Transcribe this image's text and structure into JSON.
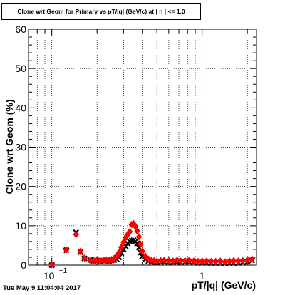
{
  "chart_data": {
    "type": "scatter",
    "title": "Clone wrt Geom for Primary vs pT/|q| (GeV/c) at | η | <= 1.0",
    "xlabel": "pT/|q| (GeV/c)",
    "ylabel": "Clone wrt Geom (%)",
    "x_scale": "log",
    "xlim": [
      0.07,
      2.3
    ],
    "ylim": [
      0,
      60
    ],
    "yticks": [
      0,
      10,
      20,
      30,
      40,
      50,
      60
    ],
    "xtick_labels": [
      {
        "value": 0.1,
        "base": "10",
        "exp": "−1"
      },
      {
        "value": 1,
        "label": "1"
      }
    ],
    "grid": true,
    "series": [
      {
        "color": "#000000",
        "marker": "cross",
        "points": [
          [
            0.1,
            0.0
          ],
          [
            0.125,
            3.8
          ],
          [
            0.145,
            8.3
          ],
          [
            0.155,
            3.3
          ],
          [
            0.165,
            1.7
          ],
          [
            0.18,
            1.3
          ],
          [
            0.19,
            1.1
          ],
          [
            0.2,
            1.2
          ],
          [
            0.21,
            1.0
          ],
          [
            0.22,
            1.1
          ],
          [
            0.23,
            1.2
          ],
          [
            0.24,
            1.0
          ],
          [
            0.25,
            1.2
          ],
          [
            0.26,
            1.3
          ],
          [
            0.27,
            1.5
          ],
          [
            0.28,
            2.0
          ],
          [
            0.29,
            3.0
          ],
          [
            0.3,
            4.0
          ],
          [
            0.31,
            4.8
          ],
          [
            0.32,
            5.5
          ],
          [
            0.33,
            6.0
          ],
          [
            0.34,
            6.2
          ],
          [
            0.35,
            6.3
          ],
          [
            0.36,
            6.0
          ],
          [
            0.37,
            5.5
          ],
          [
            0.38,
            4.5
          ],
          [
            0.39,
            3.2
          ],
          [
            0.4,
            2.2
          ],
          [
            0.42,
            1.5
          ],
          [
            0.44,
            1.0
          ],
          [
            0.46,
            0.8
          ],
          [
            0.48,
            0.8
          ],
          [
            0.5,
            0.7
          ],
          [
            0.53,
            0.7
          ],
          [
            0.56,
            0.8
          ],
          [
            0.6,
            0.7
          ],
          [
            0.64,
            0.7
          ],
          [
            0.68,
            0.8
          ],
          [
            0.72,
            0.7
          ],
          [
            0.77,
            0.7
          ],
          [
            0.82,
            0.8
          ],
          [
            0.88,
            0.7
          ],
          [
            0.94,
            0.6
          ],
          [
            1.0,
            0.6
          ],
          [
            1.07,
            0.6
          ],
          [
            1.15,
            0.5
          ],
          [
            1.23,
            0.5
          ],
          [
            1.32,
            0.6
          ],
          [
            1.42,
            0.4
          ],
          [
            1.52,
            0.5
          ],
          [
            1.62,
            0.5
          ],
          [
            1.74,
            0.6
          ],
          [
            1.86,
            0.7
          ],
          [
            2.0,
            0.8
          ],
          [
            2.15,
            1.2
          ]
        ]
      },
      {
        "color": "#ff0000",
        "marker": "diamond",
        "points": [
          [
            0.1,
            0.1
          ],
          [
            0.125,
            3.9
          ],
          [
            0.145,
            7.8
          ],
          [
            0.155,
            3.5
          ],
          [
            0.165,
            1.8
          ],
          [
            0.18,
            1.2
          ],
          [
            0.19,
            1.1
          ],
          [
            0.2,
            1.3
          ],
          [
            0.21,
            1.1
          ],
          [
            0.22,
            1.2
          ],
          [
            0.23,
            1.3
          ],
          [
            0.24,
            1.2
          ],
          [
            0.25,
            1.4
          ],
          [
            0.26,
            1.7
          ],
          [
            0.27,
            2.2
          ],
          [
            0.28,
            3.2
          ],
          [
            0.29,
            4.5
          ],
          [
            0.3,
            5.8
          ],
          [
            0.31,
            7.0
          ],
          [
            0.32,
            7.8
          ],
          [
            0.33,
            8.5
          ],
          [
            0.34,
            10.3
          ],
          [
            0.35,
            10.5
          ],
          [
            0.36,
            9.8
          ],
          [
            0.37,
            8.7
          ],
          [
            0.38,
            7.2
          ],
          [
            0.39,
            5.3
          ],
          [
            0.4,
            3.5
          ],
          [
            0.42,
            2.2
          ],
          [
            0.44,
            1.5
          ],
          [
            0.46,
            1.2
          ],
          [
            0.48,
            1.1
          ],
          [
            0.5,
            1.0
          ],
          [
            0.53,
            1.1
          ],
          [
            0.56,
            1.2
          ],
          [
            0.6,
            1.1
          ],
          [
            0.64,
            1.0
          ],
          [
            0.68,
            1.2
          ],
          [
            0.72,
            1.0
          ],
          [
            0.77,
            1.1
          ],
          [
            0.82,
            1.2
          ],
          [
            0.88,
            1.0
          ],
          [
            0.94,
            0.9
          ],
          [
            1.0,
            1.0
          ],
          [
            1.07,
            1.0
          ],
          [
            1.15,
            0.9
          ],
          [
            1.23,
            0.9
          ],
          [
            1.32,
            1.0
          ],
          [
            1.42,
            0.8
          ],
          [
            1.52,
            1.0
          ],
          [
            1.62,
            1.1
          ],
          [
            1.74,
            1.0
          ],
          [
            1.86,
            1.1
          ],
          [
            2.0,
            1.3
          ],
          [
            2.15,
            1.5
          ]
        ]
      }
    ]
  },
  "footer": {
    "timestamp": "Tue May  9 11:04:04 2017"
  }
}
